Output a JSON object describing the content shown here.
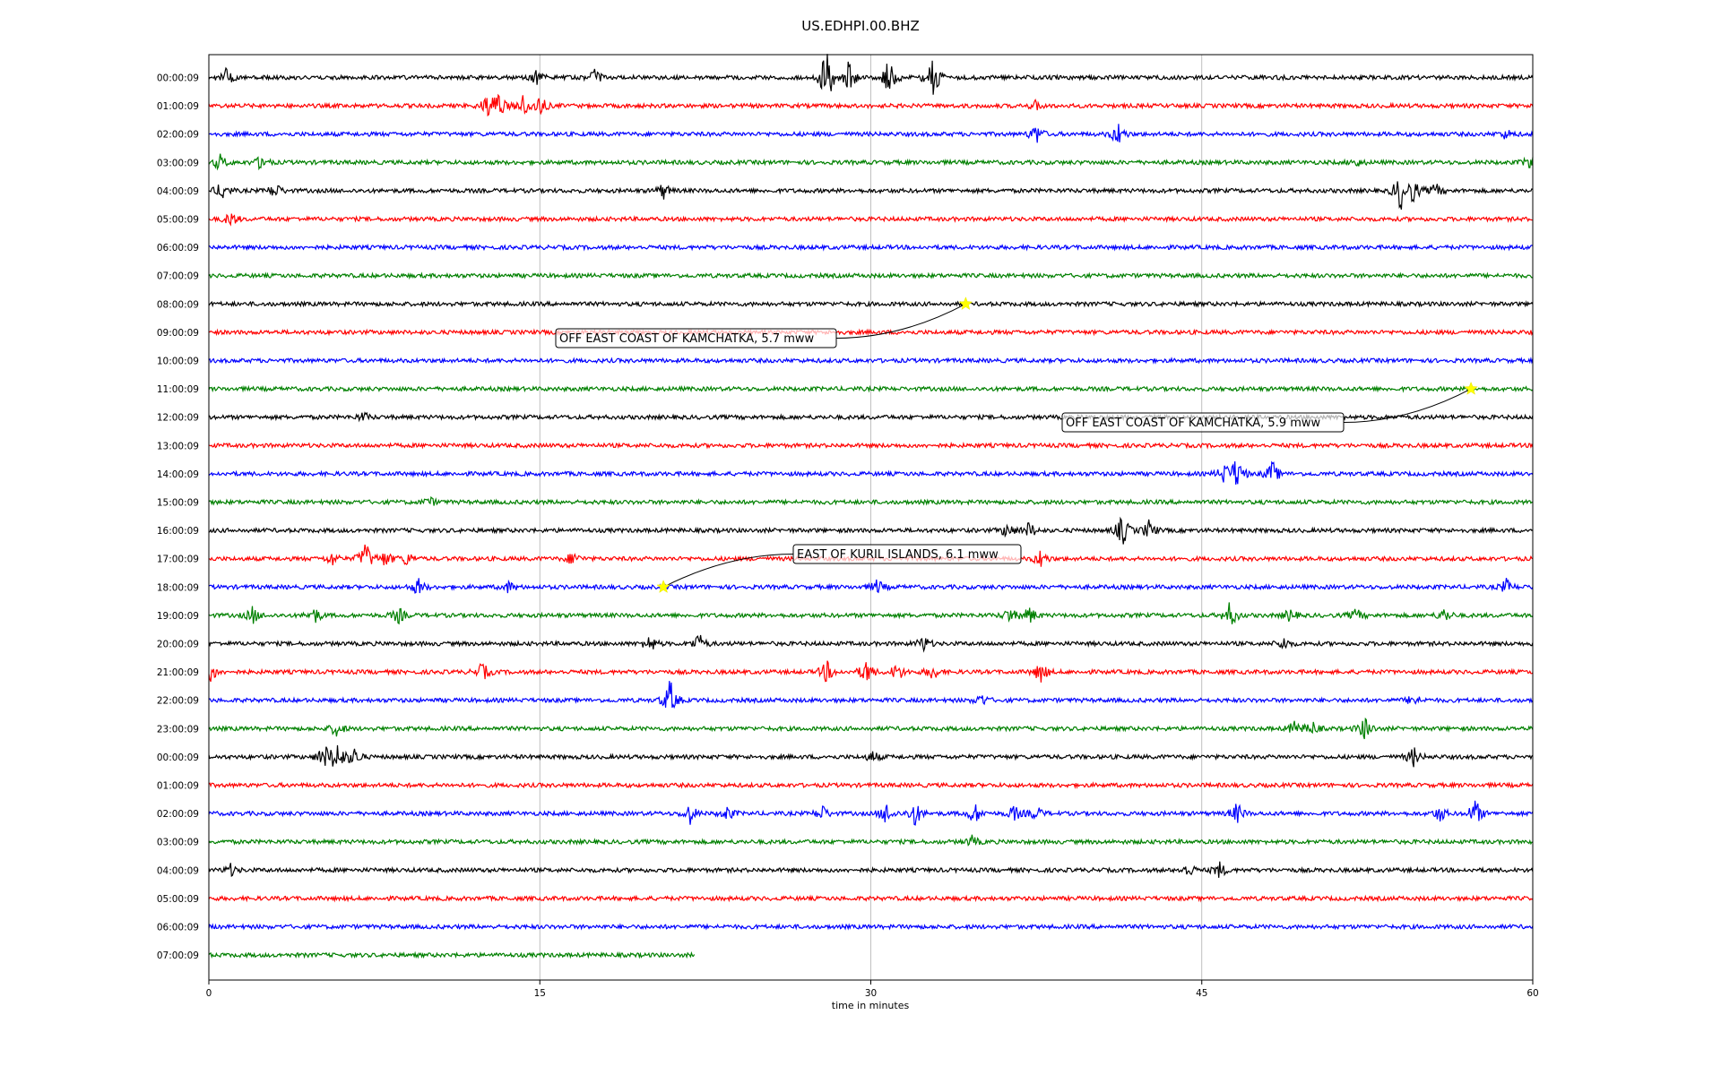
{
  "chart_data": {
    "type": "line",
    "title": "US.EDHPI.00.BHZ",
    "xlabel": "time in minutes",
    "ylabel": "",
    "xlim": [
      0,
      60
    ],
    "x_ticks": [
      "0",
      "15",
      "30",
      "45",
      "60"
    ],
    "x_tick_values": [
      0,
      15,
      30,
      45,
      60
    ],
    "grid": "vertical",
    "row_colors": [
      "#000000",
      "#ff0000",
      "#0000ff",
      "#008000"
    ],
    "rows": [
      {
        "label": "00:00:09",
        "end": 60,
        "bursts": [
          {
            "t": 0.8,
            "a": 1.2
          },
          {
            "t": 14.8,
            "a": 1.0
          },
          {
            "t": 17.5,
            "a": 0.9
          },
          {
            "t": 28.0,
            "a": 4.2
          },
          {
            "t": 29.0,
            "a": 2.0
          },
          {
            "t": 30.8,
            "a": 2.5
          },
          {
            "t": 32.8,
            "a": 3.3
          }
        ]
      },
      {
        "label": "01:00:09",
        "end": 60,
        "bursts": [
          {
            "t": 12.6,
            "a": 1.3
          },
          {
            "t": 13.1,
            "a": 2.0
          },
          {
            "t": 14.2,
            "a": 1.5
          },
          {
            "t": 15.0,
            "a": 1.4
          },
          {
            "t": 37.5,
            "a": 0.6
          }
        ]
      },
      {
        "label": "02:00:09",
        "end": 60,
        "bursts": [
          {
            "t": 37.5,
            "a": 1.3
          },
          {
            "t": 41.2,
            "a": 1.5
          },
          {
            "t": 58.8,
            "a": 0.6
          }
        ]
      },
      {
        "label": "03:00:09",
        "end": 60,
        "bursts": [
          {
            "t": 0.5,
            "a": 1.0
          },
          {
            "t": 2.4,
            "a": 1.0
          },
          {
            "t": 52.0,
            "a": 0.5
          },
          {
            "t": 59.9,
            "a": 1.0
          }
        ]
      },
      {
        "label": "04:00:09",
        "end": 60,
        "bursts": [
          {
            "t": 0.6,
            "a": 1.2
          },
          {
            "t": 3.0,
            "a": 1.0
          },
          {
            "t": 20.6,
            "a": 1.0
          },
          {
            "t": 54.0,
            "a": 2.5
          },
          {
            "t": 54.6,
            "a": 1.4
          },
          {
            "t": 55.6,
            "a": 0.9
          }
        ]
      },
      {
        "label": "05:00:09",
        "end": 60,
        "bursts": [
          {
            "t": 1.0,
            "a": 0.9
          }
        ]
      },
      {
        "label": "06:00:09",
        "end": 60,
        "bursts": []
      },
      {
        "label": "07:00:09",
        "end": 60,
        "bursts": []
      },
      {
        "label": "08:00:09",
        "end": 60,
        "bursts": []
      },
      {
        "label": "09:00:09",
        "end": 60,
        "bursts": []
      },
      {
        "label": "10:00:09",
        "end": 60,
        "bursts": []
      },
      {
        "label": "11:00:09",
        "end": 60,
        "bursts": []
      },
      {
        "label": "12:00:09",
        "end": 60,
        "bursts": [
          {
            "t": 7.0,
            "a": 0.6
          }
        ]
      },
      {
        "label": "13:00:09",
        "end": 60,
        "bursts": []
      },
      {
        "label": "14:00:09",
        "end": 60,
        "bursts": [
          {
            "t": 46.0,
            "a": 1.2
          },
          {
            "t": 46.6,
            "a": 2.2
          },
          {
            "t": 48.2,
            "a": 1.6
          }
        ]
      },
      {
        "label": "15:00:09",
        "end": 60,
        "bursts": [
          {
            "t": 10.0,
            "a": 0.6
          }
        ]
      },
      {
        "label": "16:00:09",
        "end": 60,
        "bursts": [
          {
            "t": 36.2,
            "a": 1.0
          },
          {
            "t": 37.2,
            "a": 1.1
          },
          {
            "t": 41.4,
            "a": 2.1
          },
          {
            "t": 42.6,
            "a": 1.2
          }
        ]
      },
      {
        "label": "17:00:09",
        "end": 60,
        "bursts": [
          {
            "t": 5.6,
            "a": 0.8
          },
          {
            "t": 7.1,
            "a": 2.2
          },
          {
            "t": 8.0,
            "a": 1.0
          },
          {
            "t": 9.0,
            "a": 0.9
          },
          {
            "t": 16.5,
            "a": 0.9
          },
          {
            "t": 37.7,
            "a": 1.1
          }
        ]
      },
      {
        "label": "18:00:09",
        "end": 60,
        "bursts": [
          {
            "t": 9.5,
            "a": 1.1
          },
          {
            "t": 13.6,
            "a": 0.7
          },
          {
            "t": 30.3,
            "a": 0.9
          },
          {
            "t": 58.8,
            "a": 0.9
          }
        ]
      },
      {
        "label": "19:00:09",
        "end": 60,
        "bursts": [
          {
            "t": 2.0,
            "a": 1.1
          },
          {
            "t": 4.8,
            "a": 1.0
          },
          {
            "t": 8.6,
            "a": 1.0
          },
          {
            "t": 36.3,
            "a": 1.0
          },
          {
            "t": 37.2,
            "a": 1.1
          },
          {
            "t": 46.3,
            "a": 1.8
          },
          {
            "t": 49.0,
            "a": 0.8
          },
          {
            "t": 52.0,
            "a": 0.8
          },
          {
            "t": 56.0,
            "a": 0.9
          }
        ]
      },
      {
        "label": "20:00:09",
        "end": 60,
        "bursts": [
          {
            "t": 20.0,
            "a": 1.1
          },
          {
            "t": 22.2,
            "a": 1.3
          },
          {
            "t": 32.4,
            "a": 1.0
          },
          {
            "t": 48.7,
            "a": 0.8
          }
        ]
      },
      {
        "label": "21:00:09",
        "end": 60,
        "bursts": [
          {
            "t": 0.1,
            "a": 1.3
          },
          {
            "t": 12.4,
            "a": 1.2
          },
          {
            "t": 28.0,
            "a": 1.4
          },
          {
            "t": 29.8,
            "a": 1.6
          },
          {
            "t": 31.2,
            "a": 1.2
          },
          {
            "t": 32.8,
            "a": 1.0
          },
          {
            "t": 37.7,
            "a": 1.4
          }
        ]
      },
      {
        "label": "22:00:09",
        "end": 60,
        "bursts": [
          {
            "t": 20.9,
            "a": 2.6
          },
          {
            "t": 35.0,
            "a": 0.8
          },
          {
            "t": 54.6,
            "a": 0.8
          }
        ]
      },
      {
        "label": "23:00:09",
        "end": 60,
        "bursts": [
          {
            "t": 5.8,
            "a": 1.0
          },
          {
            "t": 49.2,
            "a": 0.9
          },
          {
            "t": 50.0,
            "a": 0.9
          },
          {
            "t": 52.4,
            "a": 1.5
          }
        ]
      },
      {
        "label": "00:00:09",
        "end": 60,
        "bursts": [
          {
            "t": 5.2,
            "a": 1.6
          },
          {
            "t": 5.8,
            "a": 2.2
          },
          {
            "t": 6.6,
            "a": 1.2
          },
          {
            "t": 30.1,
            "a": 0.7
          },
          {
            "t": 54.6,
            "a": 1.2
          }
        ]
      },
      {
        "label": "01:00:09",
        "end": 60,
        "bursts": []
      },
      {
        "label": "02:00:09",
        "end": 60,
        "bursts": [
          {
            "t": 21.8,
            "a": 1.3
          },
          {
            "t": 23.5,
            "a": 0.9
          },
          {
            "t": 27.8,
            "a": 1.0
          },
          {
            "t": 30.7,
            "a": 1.4
          },
          {
            "t": 32.0,
            "a": 1.6
          },
          {
            "t": 34.7,
            "a": 1.4
          },
          {
            "t": 36.5,
            "a": 1.0
          },
          {
            "t": 37.5,
            "a": 0.9
          },
          {
            "t": 46.6,
            "a": 1.3
          },
          {
            "t": 55.8,
            "a": 1.0
          },
          {
            "t": 57.4,
            "a": 1.8
          }
        ]
      },
      {
        "label": "03:00:09",
        "end": 60,
        "bursts": [
          {
            "t": 34.6,
            "a": 0.7
          }
        ]
      },
      {
        "label": "04:00:09",
        "end": 60,
        "bursts": [
          {
            "t": 1.0,
            "a": 0.7
          },
          {
            "t": 44.4,
            "a": 0.9
          },
          {
            "t": 45.8,
            "a": 1.0
          }
        ]
      },
      {
        "label": "05:00:09",
        "end": 60,
        "bursts": []
      },
      {
        "label": "06:00:09",
        "end": 60,
        "bursts": []
      },
      {
        "label": "07:00:09",
        "end": 22,
        "bursts": []
      }
    ],
    "events": [
      {
        "label": "OFF EAST COAST OF KAMCHATKA, 5.7 mww",
        "row": 8,
        "t": 34.3
      },
      {
        "label": "OFF EAST COAST OF KAMCHATKA, 5.9 mww",
        "row": 11,
        "t": 57.2
      },
      {
        "label": "EAST OF KURIL ISLANDS, 6.1 mww",
        "row": 18,
        "t": 20.6
      }
    ]
  }
}
